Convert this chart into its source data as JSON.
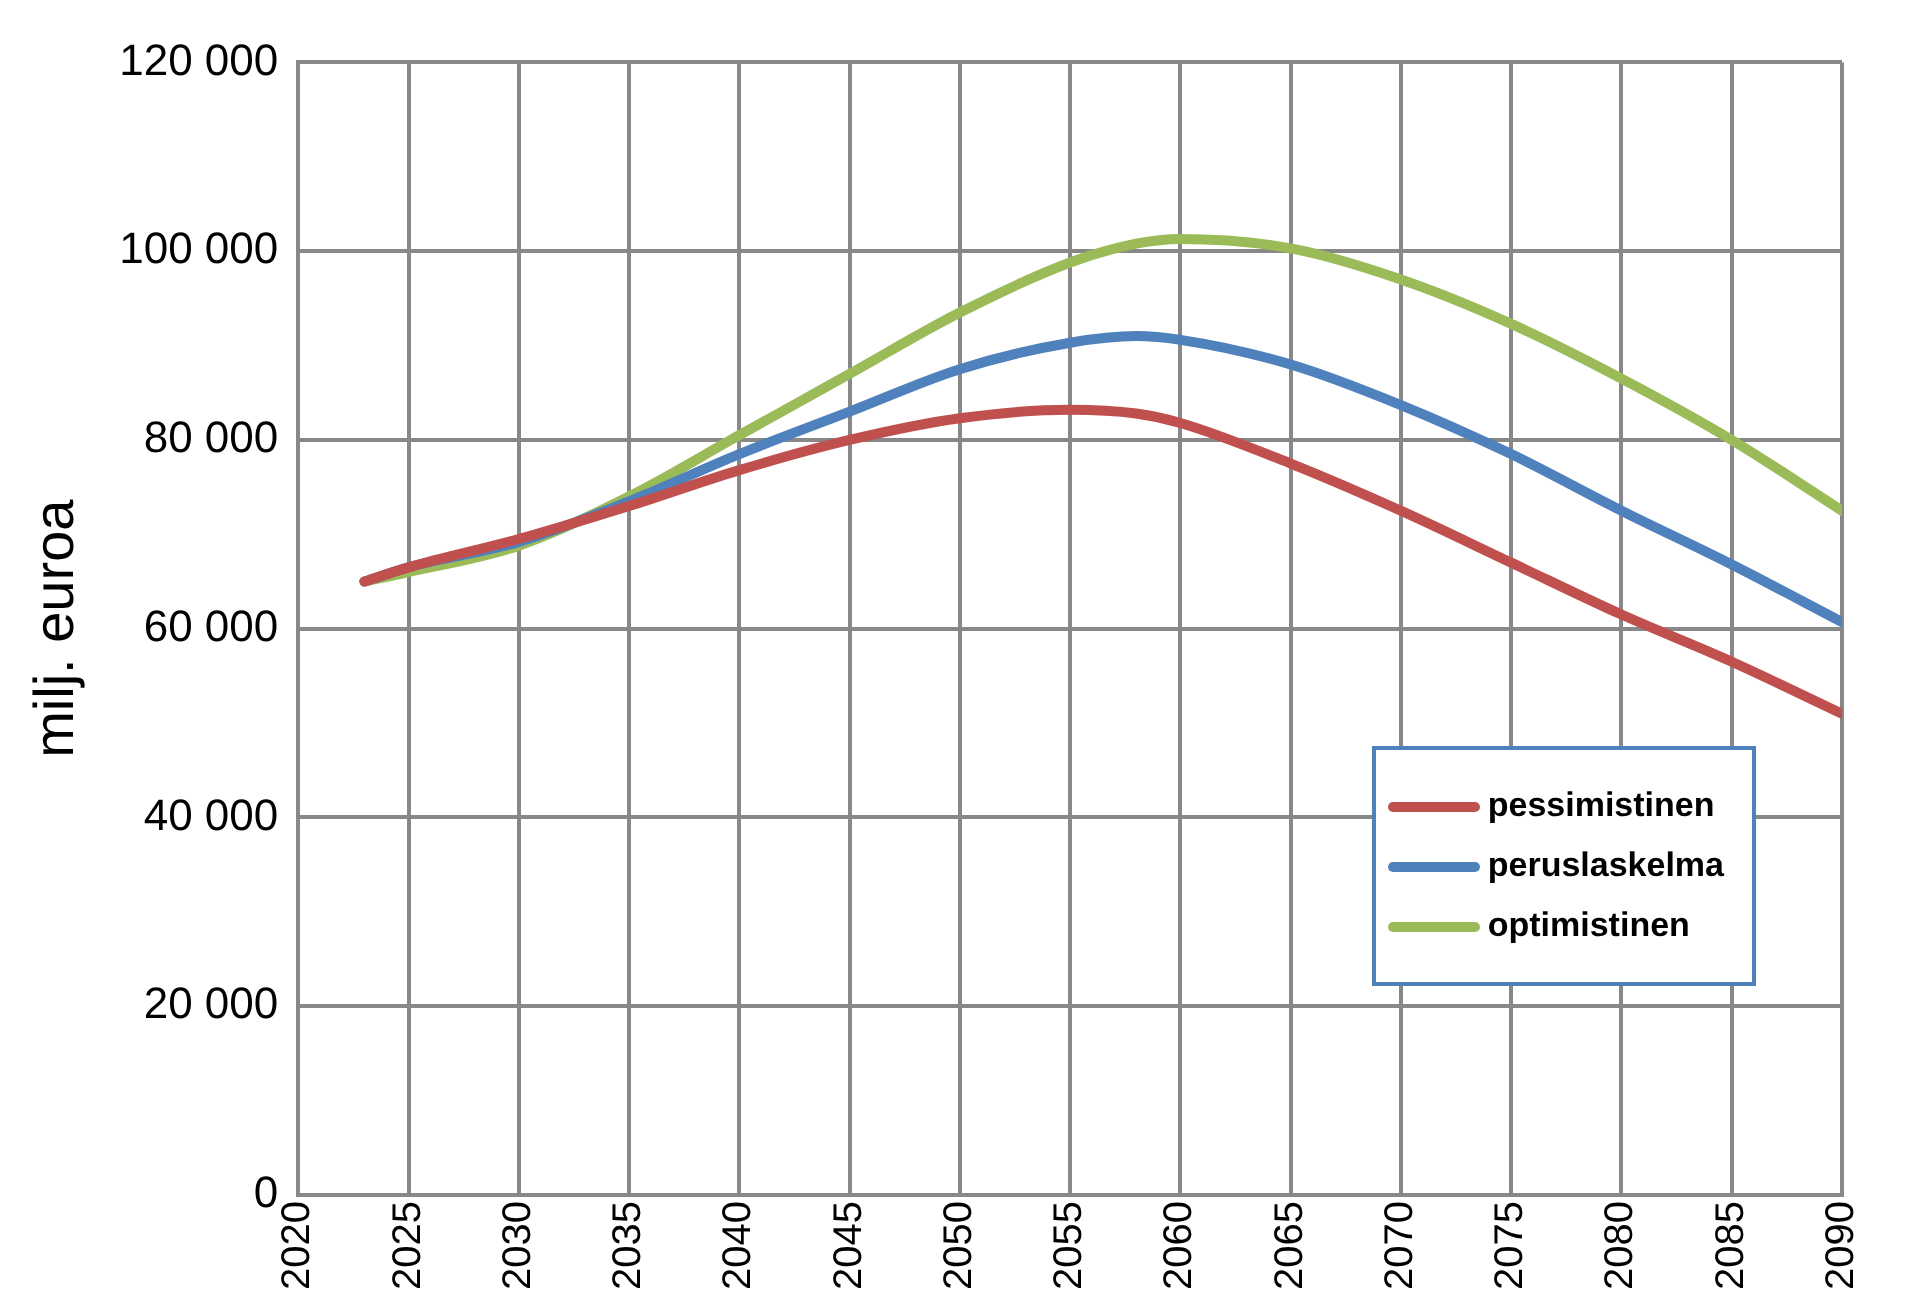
{
  "chart_data": {
    "type": "line",
    "ylabel": "milj. euroa",
    "xlim": [
      2020,
      2090
    ],
    "xticks": [
      2020,
      2025,
      2030,
      2035,
      2040,
      2045,
      2050,
      2055,
      2060,
      2065,
      2070,
      2075,
      2080,
      2085,
      2090
    ],
    "ylim": [
      0,
      120000
    ],
    "yticks": [
      {
        "value": 0,
        "label": "0"
      },
      {
        "value": 20000,
        "label": "20 000"
      },
      {
        "value": 40000,
        "label": "40 000"
      },
      {
        "value": 60000,
        "label": "60 000"
      },
      {
        "value": 80000,
        "label": "80 000"
      },
      {
        "value": 100000,
        "label": "100 000"
      },
      {
        "value": 120000,
        "label": "120 000"
      }
    ],
    "grid": true,
    "legend": "bottom right",
    "marker": "none",
    "line_style": "solid",
    "x": [
      2023,
      2025,
      2030,
      2035,
      2040,
      2045,
      2050,
      2055,
      2058,
      2060,
      2065,
      2070,
      2075,
      2080,
      2085,
      2090
    ],
    "series": [
      {
        "name": "pessimistinen",
        "color": "#c0504d",
        "values": [
          65000,
          66500,
          69500,
          73000,
          76800,
          80000,
          82300,
          83200,
          82800,
          81800,
          77500,
          72500,
          67000,
          61500,
          56500,
          51000
        ]
      },
      {
        "name": "peruslaskelma",
        "color": "#4f81bd",
        "values": [
          65000,
          66500,
          69200,
          73500,
          78500,
          83000,
          87500,
          90300,
          91000,
          90600,
          88000,
          83700,
          78500,
          72500,
          66800,
          60700
        ]
      },
      {
        "name": "optimistinen",
        "color": "#9bbb59",
        "values": [
          65000,
          66000,
          68800,
          74000,
          80500,
          87000,
          93500,
          98800,
          100800,
          101300,
          100300,
          97000,
          92300,
          86500,
          80000,
          72500
        ]
      }
    ]
  }
}
